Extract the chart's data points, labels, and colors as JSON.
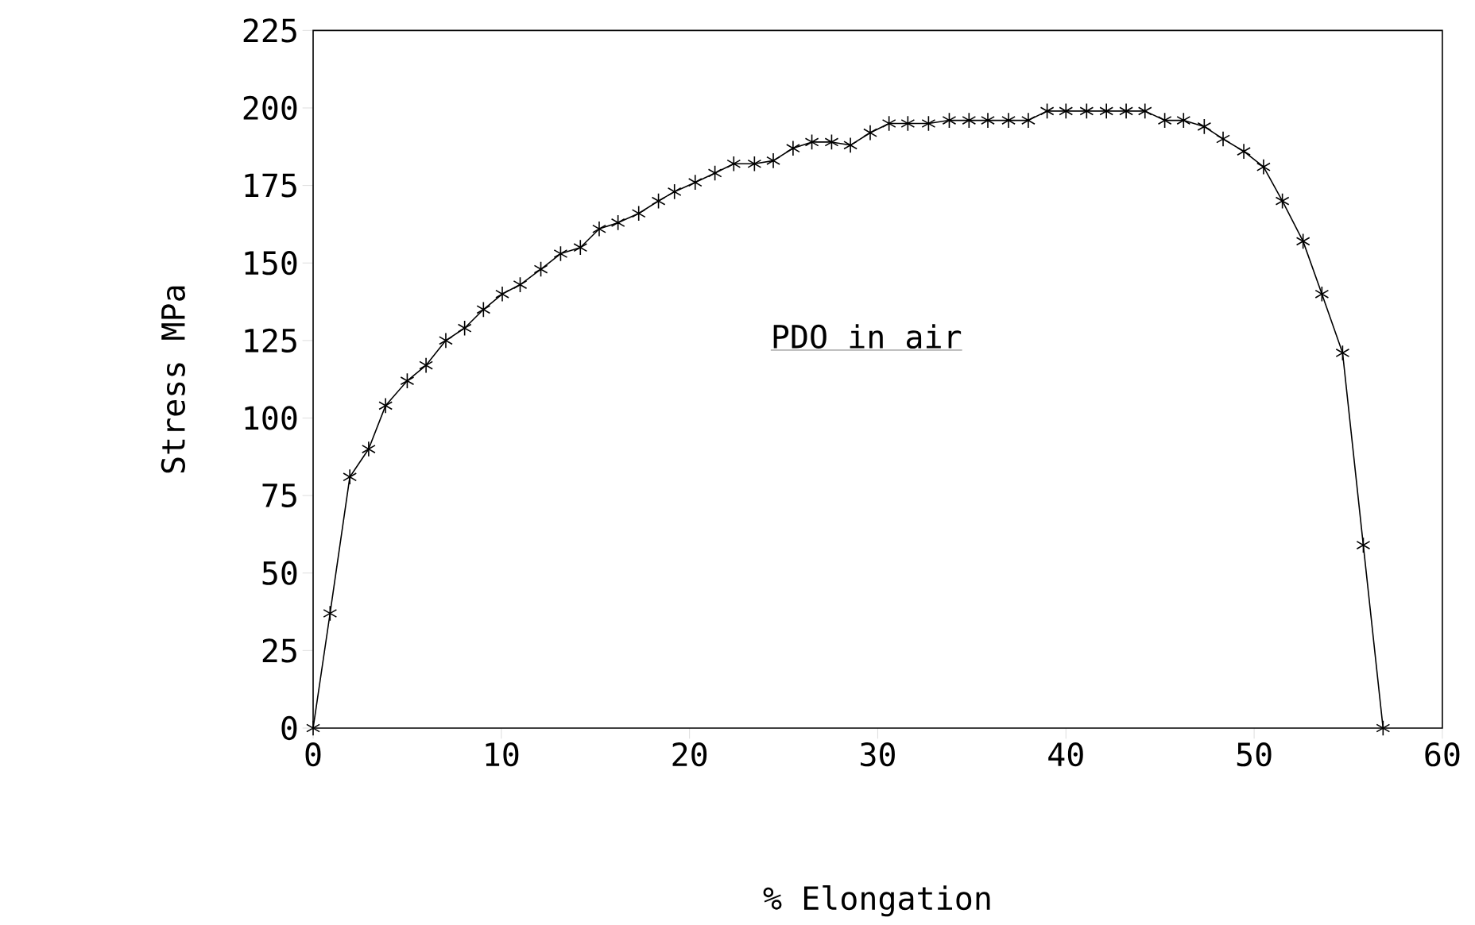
{
  "chart_data": {
    "type": "line",
    "xlabel": "% Elongation",
    "ylabel": "Stress MPa",
    "annotations": [
      "PDO in air"
    ],
    "marker": "cross",
    "line_style": "solid",
    "grid": false,
    "xlim": [
      0,
      60
    ],
    "ylim": [
      0,
      225
    ],
    "xticks": [
      0,
      10,
      20,
      30,
      40,
      50,
      60
    ],
    "yticks": [
      0,
      25,
      50,
      75,
      100,
      125,
      150,
      175,
      200,
      225
    ],
    "series": [
      {
        "color": "#000000",
        "x": [
          0,
          0.9,
          1.95,
          2.95,
          3.85,
          5,
          6,
          7.05,
          8.05,
          9.05,
          10.05,
          11,
          12.1,
          13.15,
          14.2,
          15.2,
          16.2,
          17.3,
          18.35,
          19.2,
          20.3,
          21.35,
          22.35,
          23.45,
          24.45,
          25.5,
          26.5,
          27.55,
          28.55,
          29.6,
          30.6,
          31.6,
          32.7,
          33.8,
          34.85,
          35.85,
          36.95,
          38,
          39,
          40,
          41.1,
          42.15,
          43.2,
          44.2,
          45.25,
          46.25,
          47.35,
          48.35,
          49.45,
          50.5,
          51.5,
          52.6,
          53.6,
          54.7,
          55.8,
          56.85
        ],
        "values": [
          0,
          37,
          81,
          90,
          104,
          112,
          117,
          125,
          129,
          135,
          140,
          143,
          148,
          153,
          155,
          161,
          163,
          166,
          170,
          173,
          176,
          179,
          182,
          182,
          183,
          187,
          189,
          189,
          188,
          192,
          195,
          195,
          195,
          196,
          196,
          196,
          196,
          196,
          199,
          199,
          199,
          199,
          199,
          199,
          196,
          196,
          194,
          190,
          186,
          181,
          170,
          157,
          140,
          121,
          59,
          0
        ]
      }
    ]
  }
}
